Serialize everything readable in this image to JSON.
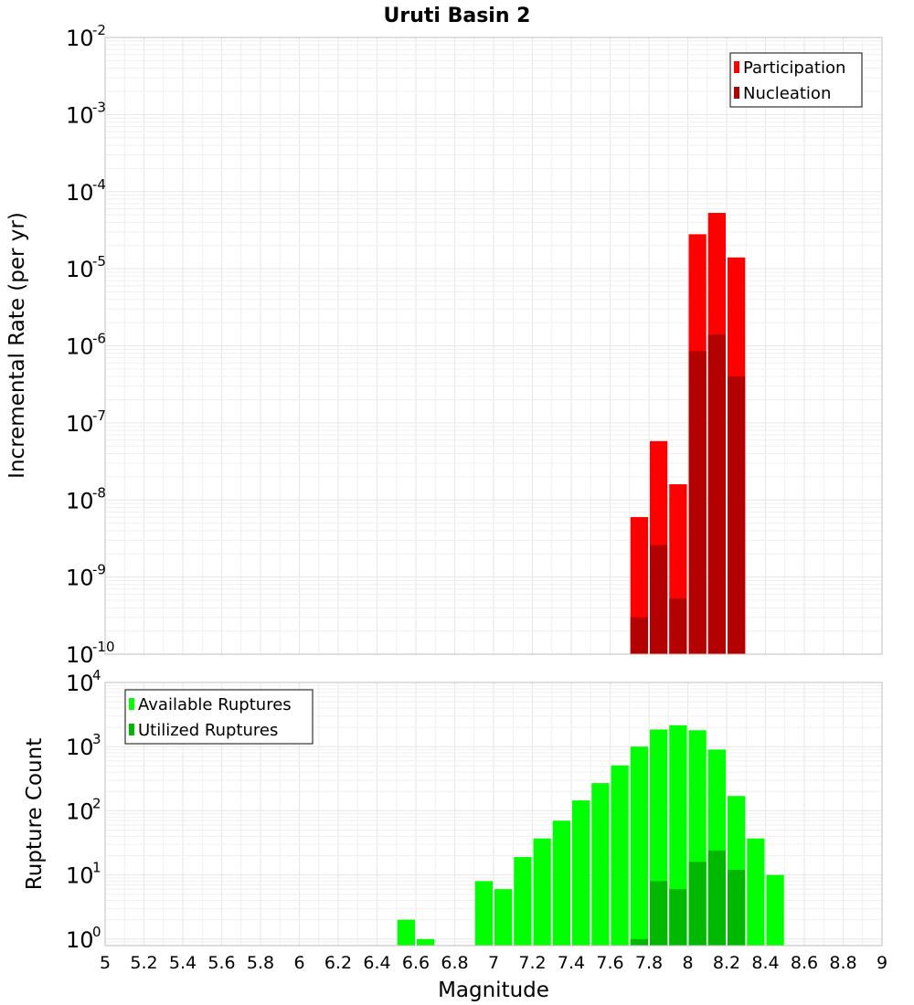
{
  "title": "Uruti Basin 2",
  "x_axis": {
    "label": "Magnitude",
    "ticks": [
      "5",
      "5.2",
      "5.4",
      "5.6",
      "5.8",
      "6",
      "6.2",
      "6.4",
      "6.6",
      "6.8",
      "7",
      "7.2",
      "7.4",
      "7.6",
      "7.8",
      "8",
      "8.2",
      "8.4",
      "8.6",
      "8.8",
      "9"
    ]
  },
  "chart_data": [
    {
      "type": "bar",
      "name": "rate-panel",
      "ylabel": "Incremental Rate (per yr)",
      "yscale": "log",
      "xlim": [
        5,
        9
      ],
      "ylim": [
        1e-10,
        0.01
      ],
      "y_tick_exponents": [
        "-2",
        "-3",
        "-4",
        "-5",
        "-6",
        "-7",
        "-8",
        "-9",
        "-10"
      ],
      "bin_width": 0.1,
      "grid": true,
      "legend_position": "top-right",
      "series": [
        {
          "name": "Participation",
          "color": "#ff0000",
          "x": [
            7.75,
            7.85,
            7.95,
            8.05,
            8.15,
            8.25
          ],
          "values": [
            6e-09,
            5.8e-08,
            1.6e-08,
            2.8e-05,
            5.3e-05,
            1.4e-05
          ]
        },
        {
          "name": "Nucleation",
          "color": "#b30000",
          "x": [
            7.75,
            7.85,
            7.95,
            8.05,
            8.15,
            8.25
          ],
          "values": [
            3e-10,
            2.6e-09,
            5.3e-10,
            8.5e-07,
            1.4e-06,
            4e-07
          ]
        }
      ]
    },
    {
      "type": "bar",
      "name": "count-panel",
      "ylabel": "Rupture Count",
      "yscale": "log",
      "xlim": [
        5,
        9
      ],
      "ylim": [
        0.79,
        10000
      ],
      "y_tick_exponents": [
        "4",
        "3",
        "2",
        "1",
        "0"
      ],
      "bin_width": 0.1,
      "grid": true,
      "legend_position": "top-left",
      "series": [
        {
          "name": "Available Ruptures",
          "color": "#00ff00",
          "x": [
            6.55,
            6.65,
            6.95,
            7.05,
            7.15,
            7.25,
            7.35,
            7.45,
            7.55,
            7.65,
            7.75,
            7.85,
            7.95,
            8.05,
            8.15,
            8.25,
            8.35,
            8.45
          ],
          "values": [
            2,
            1,
            8,
            6,
            19,
            37,
            70,
            145,
            270,
            510,
            1000,
            1850,
            2150,
            1800,
            900,
            170,
            37,
            10
          ]
        },
        {
          "name": "Utilized Ruptures",
          "color": "#00b800",
          "x": [
            7.75,
            7.85,
            7.95,
            8.05,
            8.15,
            8.25
          ],
          "values": [
            1,
            8,
            6,
            16,
            24,
            12
          ]
        }
      ]
    }
  ]
}
